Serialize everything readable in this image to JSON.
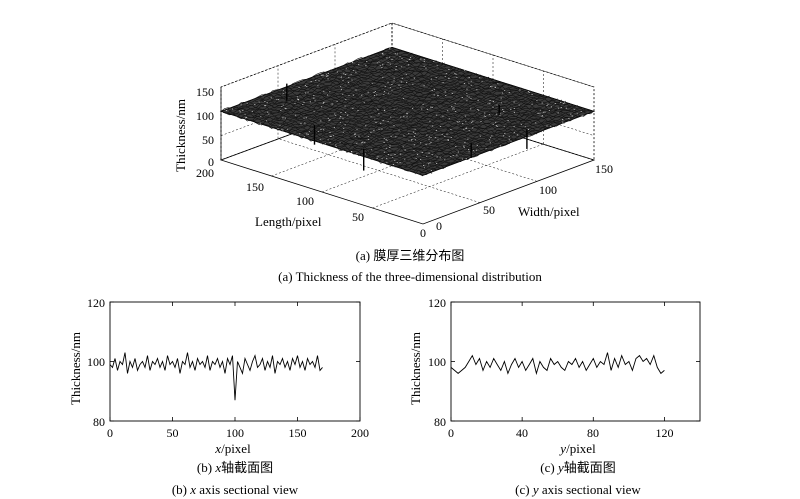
{
  "figure": {
    "a": {
      "caption_cn": "(a) 膜厚三维分布图",
      "caption_en": "(a) Thickness of the three-dimensional distribution"
    },
    "b": {
      "caption_cn_prefix": "(b) ",
      "caption_cn_var": "x",
      "caption_cn_suffix": "轴截面图",
      "caption_en_prefix": "(b) ",
      "caption_en_var": "x",
      "caption_en_suffix": " axis sectional view"
    },
    "c": {
      "caption_cn_prefix": "(c) ",
      "caption_cn_var": "y",
      "caption_cn_suffix": "轴截面图",
      "caption_en_prefix": "(c) ",
      "caption_en_var": "y",
      "caption_en_suffix": " axis sectional view"
    }
  },
  "chart_data": [
    {
      "id": "a",
      "type": "surface",
      "zlabel": "Thickness/nm",
      "xlabel": "Length/pixel",
      "ylabel": "Width/pixel",
      "zlim": [
        0,
        150
      ],
      "xlim": [
        0,
        200
      ],
      "ylim": [
        0,
        150
      ],
      "zticks": [
        "0",
        "50",
        "100",
        "150"
      ],
      "xticks": [
        "0",
        "50",
        "100",
        "150",
        "200"
      ],
      "yticks": [
        "0",
        "50",
        "100",
        "150"
      ],
      "surface_level": 100,
      "grid": true
    },
    {
      "id": "b",
      "type": "line",
      "xlabel_var": "x",
      "xlabel_unit": "/pixel",
      "ylabel": "Thickness/nm",
      "xlim": [
        0,
        200
      ],
      "ylim": [
        80,
        120
      ],
      "xticks": [
        "0",
        "50",
        "100",
        "150",
        "200"
      ],
      "yticks": [
        "80",
        "100",
        "120"
      ],
      "x": [
        0,
        2,
        4,
        6,
        8,
        10,
        12,
        14,
        16,
        18,
        20,
        22,
        24,
        26,
        28,
        30,
        32,
        34,
        36,
        38,
        40,
        42,
        44,
        46,
        48,
        50,
        52,
        54,
        56,
        58,
        60,
        62,
        64,
        66,
        68,
        70,
        72,
        74,
        76,
        78,
        80,
        82,
        84,
        86,
        88,
        90,
        92,
        94,
        96,
        98,
        100,
        102,
        104,
        106,
        108,
        110,
        112,
        114,
        116,
        118,
        120,
        122,
        124,
        126,
        128,
        130,
        132,
        134,
        136,
        138,
        140,
        142,
        144,
        146,
        148,
        150,
        152,
        154,
        156,
        158,
        160,
        162,
        164,
        166,
        168,
        170
      ],
      "y": [
        99,
        98,
        101,
        97,
        100,
        99,
        103,
        96,
        100,
        98,
        101,
        97,
        99,
        100,
        98,
        102,
        97,
        100,
        99,
        101,
        98,
        100,
        97,
        102,
        99,
        100,
        98,
        101,
        96,
        100,
        99,
        103,
        98,
        100,
        97,
        101,
        99,
        100,
        98,
        102,
        97,
        100,
        99,
        101,
        98,
        100,
        96,
        101,
        99,
        102,
        87,
        100,
        98,
        96,
        101,
        99,
        97,
        100,
        102,
        98,
        99,
        101,
        97,
        100,
        98,
        102,
        96,
        100,
        99,
        101,
        98,
        100,
        97,
        101,
        99,
        102,
        98,
        100,
        97,
        101,
        99,
        100,
        98,
        102,
        97,
        98
      ],
      "grid": false
    },
    {
      "id": "c",
      "type": "line",
      "xlabel_var": "y",
      "xlabel_unit": "/pixel",
      "ylabel": "Thickness/nm",
      "xlim": [
        0,
        140
      ],
      "ylim": [
        80,
        120
      ],
      "xticks": [
        "0",
        "40",
        "80",
        "120"
      ],
      "yticks": [
        "80",
        "100",
        "120"
      ],
      "x": [
        0,
        2,
        4,
        6,
        8,
        10,
        12,
        14,
        16,
        18,
        20,
        22,
        24,
        26,
        28,
        30,
        32,
        34,
        36,
        38,
        40,
        42,
        44,
        46,
        48,
        50,
        52,
        54,
        56,
        58,
        60,
        62,
        64,
        66,
        68,
        70,
        72,
        74,
        76,
        78,
        80,
        82,
        84,
        86,
        88,
        90,
        92,
        94,
        96,
        98,
        100,
        102,
        104,
        106,
        108,
        110,
        112,
        114,
        116,
        118,
        120
      ],
      "y": [
        98,
        97,
        96,
        97,
        98,
        100,
        102,
        99,
        101,
        97,
        100,
        98,
        101,
        99,
        97,
        100,
        96,
        99,
        101,
        98,
        100,
        97,
        99,
        101,
        96,
        100,
        98,
        97,
        101,
        99,
        100,
        98,
        97,
        100,
        99,
        101,
        98,
        100,
        97,
        99,
        101,
        98,
        100,
        99,
        103,
        97,
        101,
        98,
        102,
        99,
        100,
        97,
        101,
        102,
        100,
        101,
        99,
        102,
        98,
        96,
        97
      ],
      "grid": false
    }
  ]
}
